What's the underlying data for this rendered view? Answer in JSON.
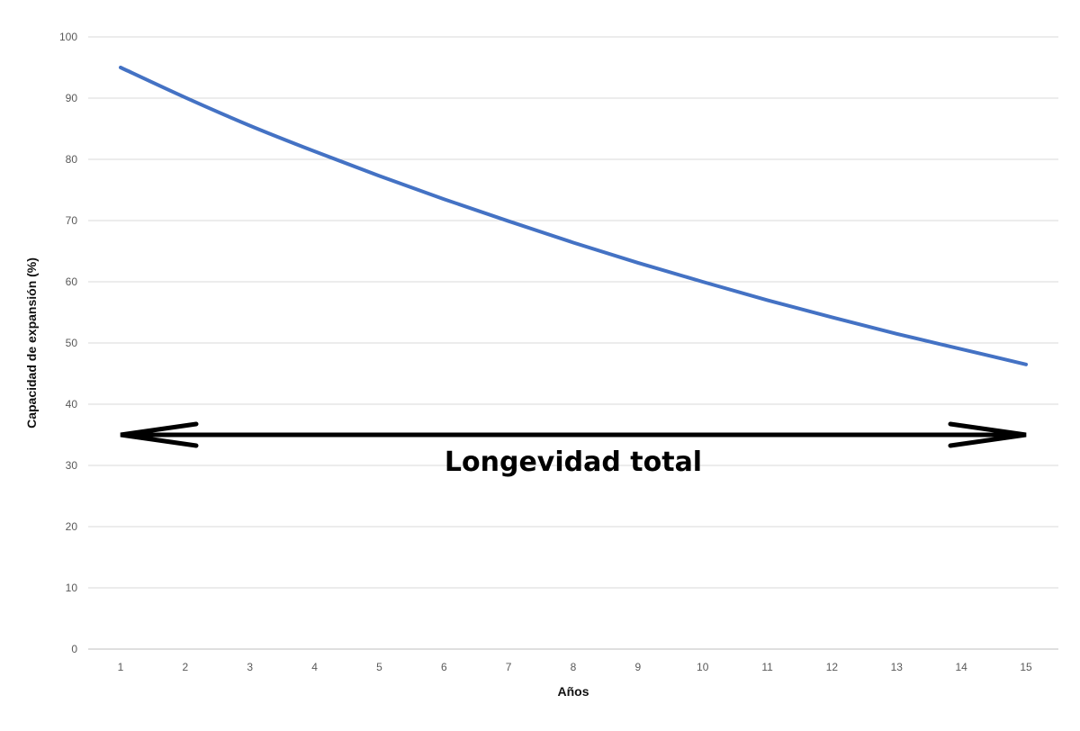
{
  "chart_data": {
    "type": "line",
    "xlabel": "Años",
    "ylabel": "Capacidad de expansión (%)",
    "x": [
      1,
      2,
      3,
      4,
      5,
      6,
      7,
      8,
      9,
      10,
      11,
      12,
      13,
      14,
      15
    ],
    "series": [
      {
        "values": [
          95,
          90.1,
          85.5,
          81.3,
          77.3,
          73.5,
          69.9,
          66.4,
          63.1,
          60,
          57,
          54.2,
          51.5,
          49,
          46.5
        ],
        "color": "#4472C4"
      }
    ],
    "ylim": [
      0,
      100
    ],
    "yticks": [
      0,
      10,
      20,
      30,
      40,
      50,
      60,
      70,
      80,
      90,
      100
    ],
    "xticks": [
      "1",
      "2",
      "3",
      "4",
      "5",
      "6",
      "7",
      "8",
      "9",
      "10",
      "11",
      "12",
      "13",
      "14",
      "15"
    ],
    "grid": true,
    "legend": "none",
    "annotation": {
      "text": "Longevidad total",
      "arrow": "double-headed",
      "x_from": 1,
      "x_to": 15,
      "y": 35,
      "color": "#000000"
    },
    "colors": {
      "grid": "#D9D9D9",
      "axis": "#BFBFBF",
      "tick_text": "#595959"
    }
  }
}
